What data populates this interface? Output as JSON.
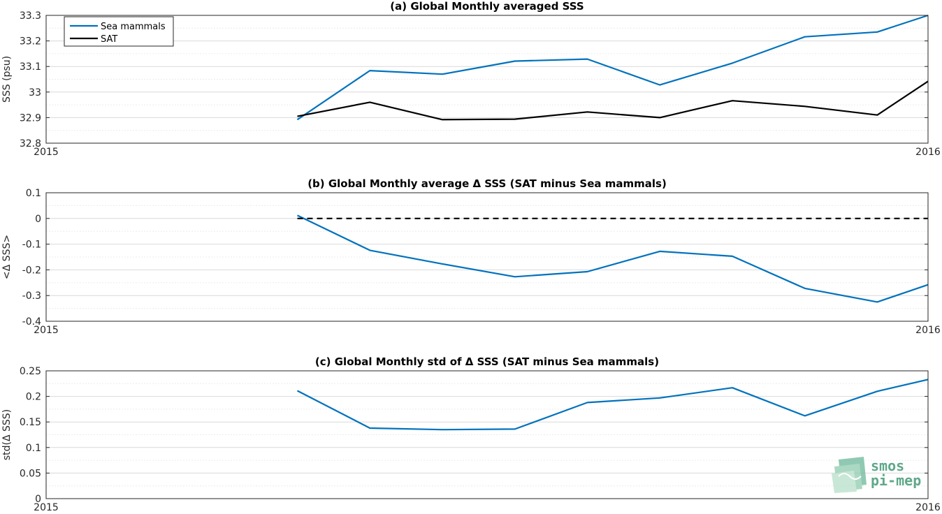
{
  "chart_data": [
    {
      "type": "line",
      "title": "(a) Global Monthly averaged SSS",
      "ylabel": "SSS (psu)",
      "xlabel": "",
      "xlim": [
        2015,
        2016
      ],
      "x_ticks": [
        "2015",
        "2016"
      ],
      "ylim": [
        32.8,
        33.3
      ],
      "y_ticks": [
        "32.8",
        "32.9",
        "33",
        "33.1",
        "33.2",
        "33.3"
      ],
      "grid": true,
      "legend_position": "top-left",
      "x": [
        2015.2849,
        2015.3671,
        2015.4493,
        2015.5315,
        2015.6137,
        2015.6959,
        2015.7781,
        2015.8603,
        2015.9425,
        2016.0
      ],
      "series": [
        {
          "name": "Sea mammals",
          "color": "#0072bd",
          "dashed": false,
          "values": [
            32.892,
            33.084,
            33.07,
            33.121,
            33.129,
            33.028,
            33.113,
            33.216,
            33.235,
            33.3
          ]
        },
        {
          "name": "SAT",
          "color": "#000000",
          "dashed": false,
          "values": [
            32.905,
            32.96,
            32.892,
            32.894,
            32.922,
            32.9,
            32.966,
            32.944,
            32.91,
            33.042
          ]
        }
      ]
    },
    {
      "type": "line",
      "title": "(b) Global Monthly average Δ SSS (SAT minus Sea mammals)",
      "ylabel": "<Δ SSS>",
      "xlabel": "",
      "xlim": [
        2015,
        2016
      ],
      "x_ticks": [
        "2015",
        "2016"
      ],
      "ylim": [
        -0.4,
        0.1
      ],
      "y_ticks": [
        "-0.4",
        "-0.3",
        "-0.2",
        "-0.1",
        "0",
        "0.1"
      ],
      "grid": true,
      "x": [
        2015.2849,
        2015.3671,
        2015.4493,
        2015.5315,
        2015.6137,
        2015.6959,
        2015.7781,
        2015.8603,
        2015.9425,
        2016.0
      ],
      "series": [
        {
          "color": "#0072bd",
          "dashed": false,
          "values": [
            0.012,
            -0.124,
            -0.177,
            -0.227,
            -0.207,
            -0.128,
            -0.147,
            -0.272,
            -0.325,
            -0.258
          ]
        },
        {
          "color": "#000000",
          "dashed": true,
          "values": [
            0,
            0,
            0,
            0,
            0,
            0,
            0,
            0,
            0,
            0
          ]
        }
      ]
    },
    {
      "type": "line",
      "title": "(c) Global Monthly std of Δ SSS (SAT minus Sea mammals)",
      "ylabel": "std(Δ SSS)",
      "xlabel": "",
      "xlim": [
        2015,
        2016
      ],
      "x_ticks": [
        "2015",
        "2016"
      ],
      "ylim": [
        0,
        0.25
      ],
      "y_ticks": [
        "0",
        "0.05",
        "0.1",
        "0.15",
        "0.2",
        "0.25"
      ],
      "grid": true,
      "x": [
        2015.2849,
        2015.3671,
        2015.4493,
        2015.5315,
        2015.6137,
        2015.6959,
        2015.7781,
        2015.8603,
        2015.9425,
        2016.0
      ],
      "series": [
        {
          "color": "#0072bd",
          "dashed": false,
          "values": [
            0.211,
            0.138,
            0.135,
            0.136,
            0.188,
            0.197,
            0.217,
            0.162,
            0.21,
            0.233
          ]
        }
      ]
    }
  ],
  "logo": {
    "line1": "smos",
    "line2": "pi-mep"
  }
}
